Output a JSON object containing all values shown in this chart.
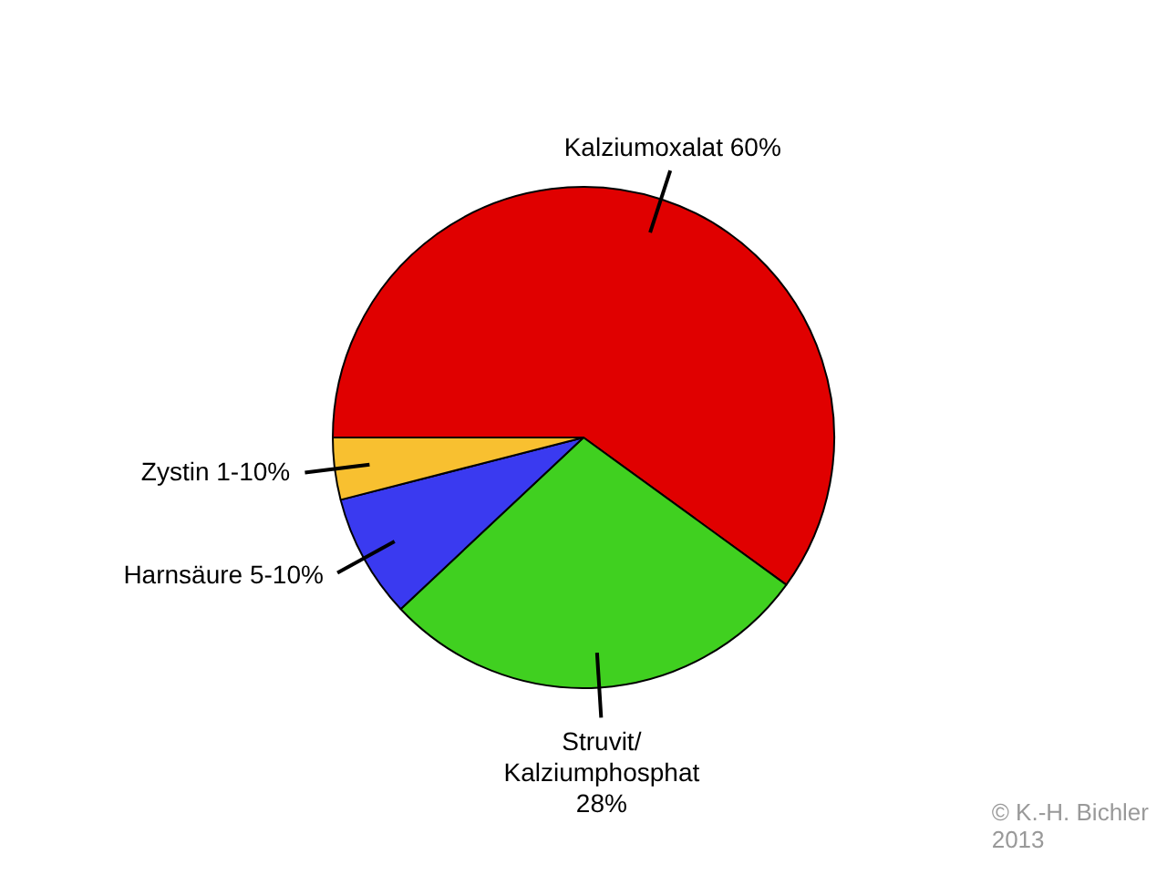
{
  "chart_data": {
    "type": "pie",
    "categories": [
      "Kalziumoxalat 60%",
      "Struvit/\nKalziumphosphat\n28%",
      "Harnsäure 5-10%",
      "Zystin 1-10%"
    ],
    "values": [
      60,
      28,
      8,
      4
    ],
    "colors": [
      "#e00000",
      "#40d020",
      "#3a3af0",
      "#f8c030"
    ],
    "legend": false,
    "annotations": [
      "© K.-H. Bichler\n2013"
    ]
  }
}
